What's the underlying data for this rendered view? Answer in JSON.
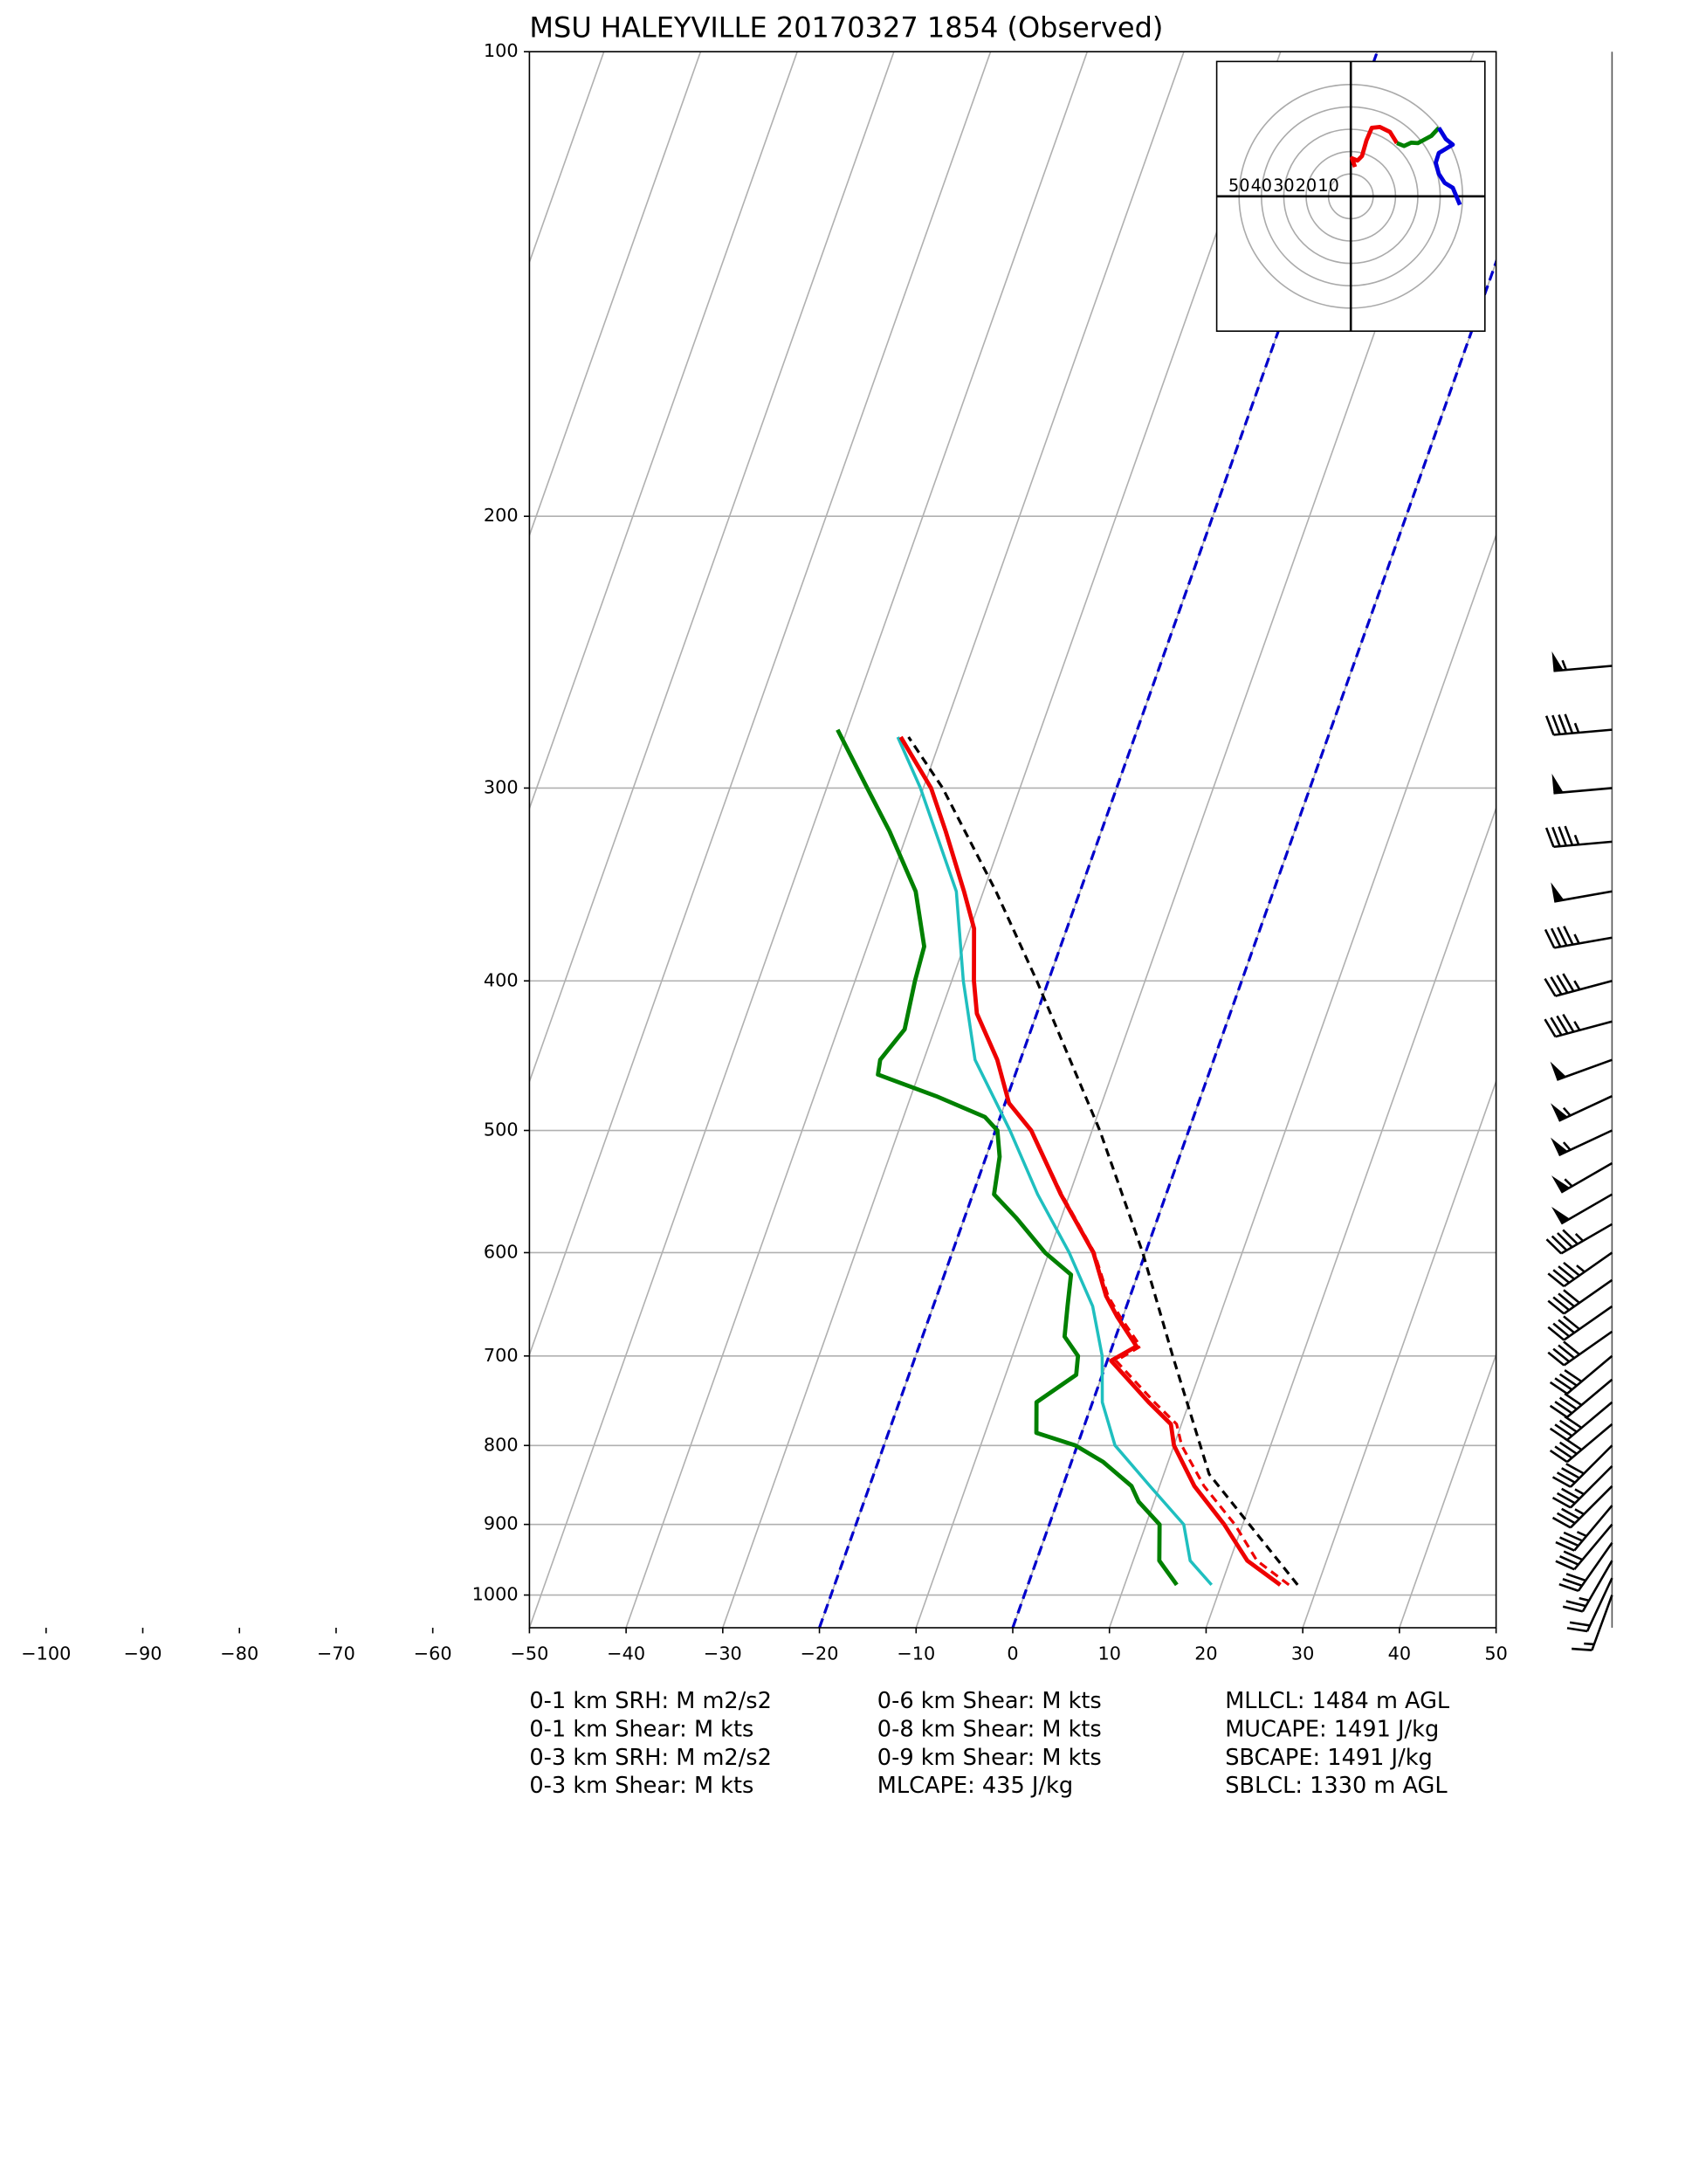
{
  "chart_data": [
    {
      "type": "skewt",
      "title": "MSU HALEYVILLE 20170327 1854   (Observed)",
      "xlim": [
        -50,
        50
      ],
      "ylim": [
        1050,
        100
      ],
      "log_y": true,
      "grid": true,
      "xticks": [
        {
          "value": -100,
          "label": "−100"
        },
        {
          "value": -90,
          "label": "−90"
        },
        {
          "value": -80,
          "label": "−80"
        },
        {
          "value": -70,
          "label": "−70"
        },
        {
          "value": -60,
          "label": "−60"
        },
        {
          "value": -50,
          "label": "−50"
        },
        {
          "value": -40,
          "label": "−40"
        },
        {
          "value": -30,
          "label": "−30"
        },
        {
          "value": -20,
          "label": "−20"
        },
        {
          "value": -10,
          "label": "−10"
        },
        0,
        10,
        20,
        30,
        40,
        50
      ],
      "yticks": [
        100,
        200,
        300,
        400,
        500,
        600,
        700,
        800,
        900,
        1000
      ],
      "highlight_isotherms": [
        {
          "value": -20,
          "color": "#0000cc"
        },
        {
          "value": 0,
          "color": "#0000cc"
        }
      ],
      "series": [
        {
          "color": "#1fbfbf",
          "width": 2.2,
          "dash": false,
          "pressure": [
            985,
            950,
            900,
            850,
            800,
            750,
            700,
            650,
            600,
            550,
            500,
            450,
            400,
            350,
            300,
            278
          ],
          "values": [
            19.0,
            15.9,
            13.9,
            9.0,
            3.9,
            1.0,
            -0.7,
            -3.5,
            -7.9,
            -13.3,
            -18.5,
            -24.7,
            -28.8,
            -32.8,
            -40.3,
            -44.5
          ]
        },
        {
          "color": "#008000",
          "width": 3,
          "dash": false,
          "pressure": [
            985,
            950,
            900,
            870,
            850,
            820,
            800,
            785,
            750,
            720,
            700,
            680,
            650,
            620,
            600,
            570,
            550,
            520,
            500,
            490,
            475,
            460,
            450,
            430,
            400,
            380,
            350,
            320,
            300,
            275
          ],
          "values": [
            15.4,
            12.7,
            11.4,
            8.4,
            7.1,
            3.3,
            -0.2,
            -4.7,
            -5.8,
            -2.7,
            -3.2,
            -5.3,
            -6.1,
            -6.9,
            -10.4,
            -14.6,
            -17.8,
            -18.6,
            -19.8,
            -21.6,
            -27.4,
            -34.2,
            -34.5,
            -33.1,
            -33.8,
            -34.1,
            -37.0,
            -41.9,
            -45.8,
            -51.0
          ]
        },
        {
          "color": "#ee0000",
          "width": 2,
          "dash": true,
          "pressure": [
            985,
            950,
            900,
            850,
            800,
            775,
            750,
            705,
            690,
            660,
            640,
            600,
            550,
            500
          ],
          "values": [
            27.0,
            22.8,
            19.2,
            14.6,
            10.8,
            9.5,
            6.4,
            0.9,
            2.9,
            -0.3,
            -2.3,
            -5.3,
            -10.8,
            -16.3
          ]
        },
        {
          "color": "#ee0000",
          "width": 3,
          "dash": false,
          "pressure": [
            985,
            950,
            900,
            850,
            800,
            775,
            750,
            705,
            690,
            660,
            640,
            600,
            550,
            500,
            480,
            450,
            420,
            400,
            370,
            350,
            320,
            300,
            278
          ],
          "values": [
            26.1,
            21.8,
            18.1,
            13.6,
            10.0,
            8.9,
            5.8,
            0.4,
            2.5,
            -0.6,
            -2.5,
            -5.4,
            -10.9,
            -16.3,
            -19.6,
            -22.4,
            -26.2,
            -27.7,
            -29.6,
            -32.0,
            -36.1,
            -39.2,
            -44.2
          ]
        },
        {
          "color": "#000000",
          "width": 2,
          "dash": true,
          "pressure": [
            985,
            835,
            700,
            600,
            500,
            400,
            350,
            300,
            278
          ],
          "values": [
            27.9,
            14.7,
            6.6,
            -0.3,
            -9.2,
            -21.2,
            -28.7,
            -38.0,
            -43.4
          ]
        }
      ],
      "wind": {
        "pressure": [
          1000,
          975,
          950,
          925,
          900,
          875,
          850,
          825,
          800,
          775,
          750,
          725,
          700,
          675,
          650,
          625,
          600,
          575,
          550,
          525,
          500,
          475,
          450,
          425,
          400,
          375,
          350,
          325,
          300,
          275,
          250
        ],
        "speed": [
          15,
          20,
          25,
          30,
          30,
          35,
          35,
          35,
          40,
          40,
          40,
          40,
          40,
          40,
          40,
          40,
          45,
          45,
          50,
          55,
          55,
          55,
          50,
          45,
          45,
          45,
          50,
          45,
          50,
          45,
          55
        ],
        "direction": [
          200,
          205,
          210,
          215,
          220,
          220,
          225,
          225,
          225,
          230,
          230,
          230,
          230,
          235,
          235,
          235,
          235,
          240,
          240,
          240,
          245,
          245,
          250,
          255,
          255,
          260,
          260,
          265,
          265,
          265,
          265
        ]
      },
      "notes": [
        [
          "0-1 km SRH: M m2/s2",
          "0-1 km Shear: M kts",
          "0-3 km SRH: M m2/s2",
          "0-3 km Shear: M kts"
        ],
        [
          "0-6 km Shear: M kts",
          "0-8 km Shear: M kts",
          "0-9 km Shear: M kts",
          "MLCAPE: 435 J/kg"
        ],
        [
          "MLLCL: 1484 m AGL",
          "MUCAPE: 1491 J/kg",
          "SBCAPE: 1491 J/kg",
          "SBLCL: 1330 m AGL"
        ]
      ]
    },
    {
      "type": "hodograph",
      "xlim": [
        -60,
        60
      ],
      "ylim": [
        -60,
        60
      ],
      "rings": [
        50,
        40,
        30,
        20,
        10
      ],
      "series": [
        {
          "color": "#ee0000",
          "u": [
            1.9,
            0.5,
            3,
            5,
            7,
            9.4,
            13,
            17.5,
            20.6
          ],
          "v": [
            13.1,
            17,
            16,
            18,
            25,
            30.6,
            31,
            28.8,
            23.8
          ]
        },
        {
          "color": "#008000",
          "u": [
            20.6,
            23.8,
            27,
            30,
            36,
            39.4
          ],
          "v": [
            23.8,
            22.5,
            24,
            23.8,
            27,
            30.6
          ]
        },
        {
          "color": "#0000dd",
          "u": [
            39.4,
            42.5,
            45.6,
            39.4,
            38,
            39.4,
            42,
            45.6,
            48.8
          ],
          "v": [
            30.6,
            25.6,
            23.1,
            19.4,
            15,
            10,
            6,
            3.8,
            -3.8
          ]
        }
      ]
    }
  ]
}
